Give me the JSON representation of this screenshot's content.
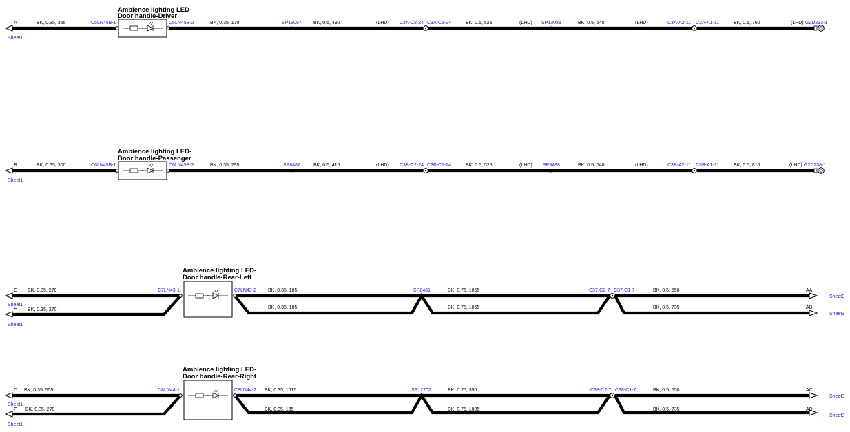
{
  "colors": {
    "wire": "#000000",
    "connector_text": "#1a1ad8",
    "background": "#ffffff"
  },
  "rows": [
    {
      "title_lines": [
        "Ambience lighting LED-",
        "Door handle-Driver"
      ],
      "left_letter": "A",
      "left_sheet": "Sheet1",
      "left_conn": "C5LN45B-1",
      "right_conn": "C5LN45B-2",
      "w1": "BK, 0.35, 355",
      "w2": "BK, 0.35, 170",
      "sp": "SP13087",
      "w3": "BK, 0.5, 490",
      "lhd1": "(LHD)",
      "c1a": "C3A-C2-24",
      "c1b": "C3A-C1-24",
      "w4": "BK, 0.5, 525",
      "lhd2": "(LHD)",
      "sp2": "SP13088",
      "w5": "BK, 0.5, 540",
      "lhd3": "(LHD)",
      "c2a": "C3A-A2-11",
      "c2b": "C3A-A1-11",
      "w6": "BK, 0.5, 760",
      "lhd4": "(LHD)",
      "ground": "G2D233-1"
    },
    {
      "title_lines": [
        "Ambience lighting LED-",
        "Door handle-Passenger"
      ],
      "left_letter": "B",
      "left_sheet": "Sheet1",
      "left_conn": "C6LN45B-1",
      "right_conn": "C6LN45B-2",
      "w1": "BK, 0.35, 300",
      "w2": "BK, 0.35, 295",
      "sp": "SP8487",
      "w3": "BK, 0.5, 415",
      "lhd1": "(LHD)",
      "c1a": "C3B-C2-24",
      "c1b": "C3B-C1-24",
      "w4": "BK, 0.5, 525",
      "lhd2": "(LHD)",
      "sp2": "SP8488",
      "w5": "BK, 0.5, 540",
      "lhd3": "(LHD)",
      "c2a": "C3B-A2-11",
      "c2b": "C3B-A1-11",
      "w6": "BK, 0.5, 815",
      "lhd4": "(LHD)",
      "ground": "G2D238-1"
    }
  ],
  "rear": [
    {
      "title_lines": [
        "Ambience lighting LED-",
        "Door handle-Rear-Left"
      ],
      "top_letter": "C",
      "top_sheet": "Sheet1",
      "bot_letter": "E",
      "bot_sheet": "Sheet1",
      "w_top_left": "BK, 0.35, 270",
      "w_bot_left": "BK, 0.35, 270",
      "left_conn": "C7LN43-1",
      "right_conn": "C7LN43-2",
      "w_top_mid": "BK, 0.35, 185",
      "w_bot_mid": "BK, 0.35, 185",
      "sp": "SP8461",
      "w_top_r1": "BK, 0.75, 1055",
      "w_bot_r1": "BK, 0.75, 1055",
      "ca": "C37-C2-7",
      "cb": "C37-C1-7",
      "w_top_r2": "BK, 0.5, 550",
      "w_bot_r2": "BK, 0.5, 735",
      "top_right_letter": "AA",
      "bot_right_letter": "AB",
      "top_right_sheet": "Sheet3",
      "bot_right_sheet": "Sheet3"
    },
    {
      "title_lines": [
        "Ambience lighting LED-",
        "Door handle-Rear-Right"
      ],
      "top_letter": "D",
      "top_sheet": "Sheet1",
      "bot_letter": "F",
      "bot_sheet": "Sheet1",
      "w_top_left": "BK, 0.35, 555",
      "w_bot_left": "BK, 0.35, 270",
      "left_conn": "C8LN44-1",
      "right_conn": "C8LN44-2",
      "w_top_mid": "BK, 0.35, 1615",
      "w_bot_mid": "BK, 0.35, 135",
      "sp": "SP12702",
      "w_top_r1": "BK, 0.75, 350",
      "w_bot_r1": "BK, 0.75, 1005",
      "ca": "C38-C2-7",
      "cb": "C38-C1-7",
      "w_top_r2": "BK, 0.5, 550",
      "w_bot_r2": "BK, 0.5, 735",
      "top_right_letter": "AC",
      "bot_right_letter": "AD",
      "top_right_sheet": "Sheet3",
      "bot_right_sheet": "Sheet3"
    }
  ]
}
